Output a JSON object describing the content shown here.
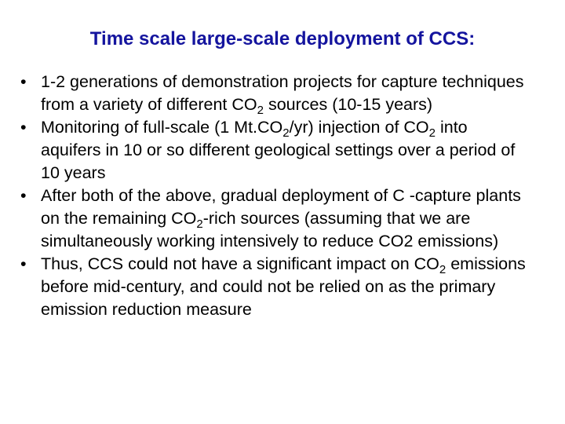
{
  "title": "Time scale large-scale deployment of CCS:",
  "bullets": [
    {
      "parts": [
        "1-2 generations of demonstration projects for capture techniques from a variety of different CO",
        "2",
        " sources (10-15 years)"
      ]
    },
    {
      "parts": [
        "Monitoring of full-scale (1 Mt.CO",
        "2",
        "/yr) injection of CO",
        "2",
        " into aquifers in 10 or so different geological settings over a period of 10 years"
      ]
    },
    {
      "parts": [
        "After both of the above, gradual deployment of C -capture plants on the remaining CO",
        "2",
        "-rich sources (assuming that we are simultaneously working intensively to reduce CO2 emissions)"
      ]
    },
    {
      "parts": [
        "Thus, CCS could not have a significant impact on CO",
        "2",
        " emissions before mid-century, and could not be relied on as the primary emission reduction measure"
      ]
    }
  ]
}
